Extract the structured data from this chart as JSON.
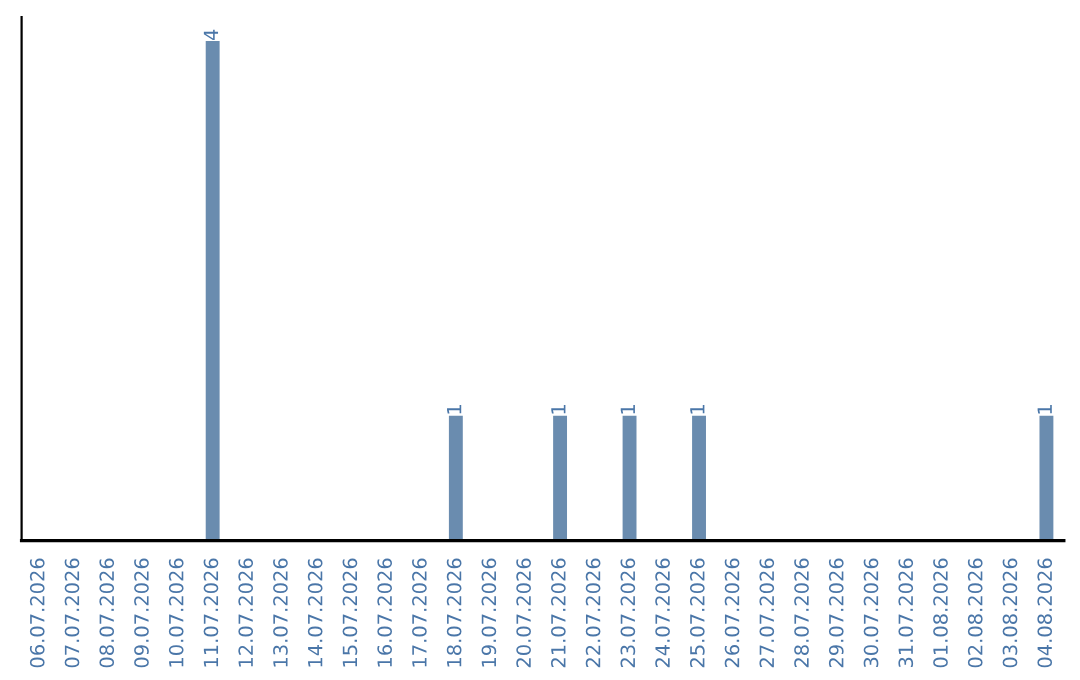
{
  "chart_data": {
    "type": "bar",
    "categories": [
      "06.07.2026",
      "07.07.2026",
      "08.07.2026",
      "09.07.2026",
      "10.07.2026",
      "11.07.2026",
      "12.07.2026",
      "13.07.2026",
      "14.07.2026",
      "15.07.2026",
      "16.07.2026",
      "17.07.2026",
      "18.07.2026",
      "19.07.2026",
      "20.07.2026",
      "21.07.2026",
      "22.07.2026",
      "23.07.2026",
      "24.07.2026",
      "25.07.2026",
      "26.07.2026",
      "27.07.2026",
      "28.07.2026",
      "29.07.2026",
      "30.07.2026",
      "31.07.2026",
      "01.08.2026",
      "02.08.2026",
      "03.08.2026",
      "04.08.2026"
    ],
    "values": [
      0,
      0,
      0,
      0,
      0,
      4,
      0,
      0,
      0,
      0,
      0,
      0,
      1,
      0,
      0,
      1,
      0,
      1,
      0,
      1,
      0,
      0,
      0,
      0,
      0,
      0,
      0,
      0,
      0,
      1
    ],
    "value_labels": [
      null,
      null,
      null,
      null,
      null,
      "4",
      null,
      null,
      null,
      null,
      null,
      null,
      "1",
      null,
      null,
      "1",
      null,
      "1",
      null,
      "1",
      null,
      null,
      null,
      null,
      null,
      null,
      null,
      null,
      null,
      "1"
    ],
    "color": "#6a8caf",
    "tick_labels": "x",
    "grid": false
  }
}
